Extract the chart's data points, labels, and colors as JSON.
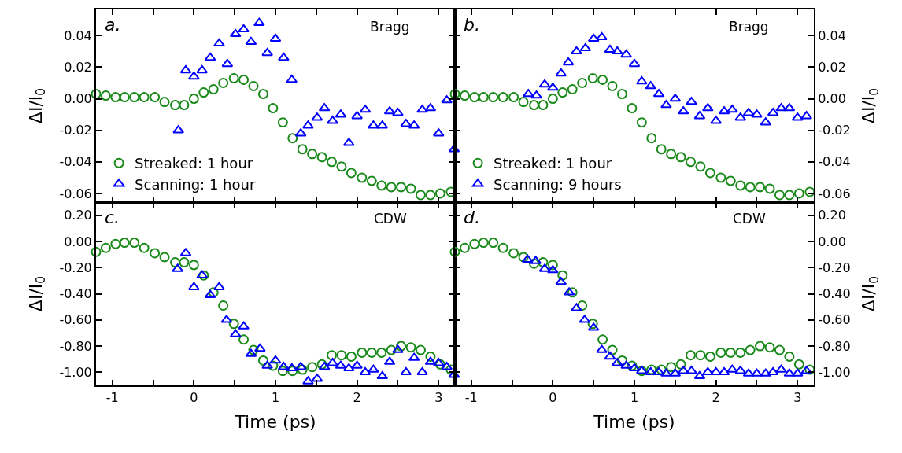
{
  "chart_data": [
    {
      "type": "scatter",
      "ylabel": "ΔI/I$_{0}$",
      "annotations": [
        "a.",
        "Bragg"
      ],
      "xlim": [
        -1.2,
        3.2
      ],
      "ylim": [
        -0.0655,
        0.0566
      ],
      "tick_labels": "y",
      "legend": "bottom left",
      "xticks": [
        -1,
        {
          "value": -0.5,
          "label": null
        },
        0,
        {
          "value": 0.5,
          "label": null
        },
        1,
        {
          "value": 1.5,
          "label": null
        },
        2,
        {
          "value": 2.5,
          "label": null
        },
        3
      ],
      "yticks": [
        0.04,
        0.02,
        {
          "value": 0,
          "label": "0.00"
        },
        -0.02,
        -0.04,
        -0.06
      ],
      "series": [
        {
          "name": "Streaked: 1 hour",
          "color": "#1a8a1a",
          "marker": "circle",
          "x": [
            -1.2,
            -1.08,
            -0.96,
            -0.85,
            -0.73,
            -0.61,
            -0.48,
            -0.36,
            -0.23,
            -0.12,
            0,
            0.12,
            0.24,
            0.36,
            0.49,
            0.61,
            0.73,
            0.85,
            0.97,
            1.09,
            1.21,
            1.33,
            1.45,
            1.57,
            1.69,
            1.81,
            1.93,
            2.06,
            2.18,
            2.3,
            2.42,
            2.54,
            2.66,
            2.78,
            2.9,
            3.02,
            3.15
          ],
          "values": [
            0.003,
            0.002,
            0.001,
            0.001,
            0.001,
            0.001,
            0.001,
            -0.002,
            -0.004,
            -0.004,
            0,
            0.004,
            0.006,
            0.01,
            0.013,
            0.012,
            0.008,
            0.003,
            -0.006,
            -0.015,
            -0.025,
            -0.032,
            -0.035,
            -0.037,
            -0.04,
            -0.043,
            -0.047,
            -0.05,
            -0.052,
            -0.055,
            -0.056,
            -0.056,
            -0.057,
            -0.061,
            -0.061,
            -0.06,
            -0.059
          ]
        },
        {
          "name": "Scanning: 1 hour",
          "color": "#0000ff",
          "marker": "triangle",
          "x": [
            -0.19,
            -0.1,
            0,
            0.1,
            0.2,
            0.31,
            0.41,
            0.51,
            0.61,
            0.7,
            0.8,
            0.9,
            1,
            1.1,
            1.2,
            1.31,
            1.4,
            1.51,
            1.6,
            1.7,
            1.8,
            1.9,
            2,
            2.1,
            2.2,
            2.31,
            2.4,
            2.5,
            2.6,
            2.7,
            2.8,
            2.9,
            3,
            3.1,
            3.19
          ],
          "values": [
            -0.02,
            0.018,
            0.014,
            0.018,
            0.026,
            0.035,
            0.022,
            0.041,
            0.044,
            0.036,
            0.048,
            0.029,
            0.038,
            0.026,
            0.012,
            -0.022,
            -0.017,
            -0.012,
            -0.006,
            -0.014,
            -0.01,
            -0.028,
            -0.011,
            -0.007,
            -0.017,
            -0.017,
            -0.008,
            -0.009,
            -0.016,
            -0.017,
            -0.007,
            -0.006,
            -0.022,
            -0.001,
            -0.032
          ]
        }
      ]
    },
    {
      "type": "scatter",
      "y2label": "ΔI/I$_{0}$",
      "annotations": [
        "b.",
        "Bragg"
      ],
      "xlim": [
        -1.2,
        3.2
      ],
      "y2lim": [
        -0.0655,
        0.0566
      ],
      "tick_labels": "y",
      "legend": "bottom left",
      "xticks": [
        -1,
        {
          "value": -0.5,
          "label": null
        },
        0,
        {
          "value": 0.5,
          "label": null
        },
        1,
        {
          "value": 1.5,
          "label": null
        },
        2,
        {
          "value": 2.5,
          "label": null
        },
        3
      ],
      "y2ticks": [
        0.04,
        0.02,
        {
          "value": 0,
          "label": "0.00"
        },
        -0.02,
        -0.04,
        -0.06
      ],
      "series": [
        {
          "name": "Streaked: 1 hour",
          "color": "#1a8a1a",
          "marker": "circle",
          "axis": "y2",
          "x": [
            -1.2,
            -1.08,
            -0.96,
            -0.85,
            -0.73,
            -0.61,
            -0.48,
            -0.36,
            -0.23,
            -0.12,
            0,
            0.12,
            0.24,
            0.36,
            0.49,
            0.61,
            0.73,
            0.85,
            0.97,
            1.09,
            1.21,
            1.33,
            1.45,
            1.57,
            1.69,
            1.81,
            1.93,
            2.06,
            2.18,
            2.3,
            2.42,
            2.54,
            2.66,
            2.78,
            2.9,
            3.02,
            3.15
          ],
          "values": [
            0.003,
            0.002,
            0.001,
            0.001,
            0.001,
            0.001,
            0.001,
            -0.002,
            -0.004,
            -0.004,
            0,
            0.004,
            0.006,
            0.01,
            0.013,
            0.012,
            0.008,
            0.003,
            -0.006,
            -0.015,
            -0.025,
            -0.032,
            -0.035,
            -0.037,
            -0.04,
            -0.043,
            -0.047,
            -0.05,
            -0.052,
            -0.055,
            -0.056,
            -0.056,
            -0.057,
            -0.061,
            -0.061,
            -0.06,
            -0.059
          ]
        },
        {
          "name": "Scanning: 9 hours",
          "color": "#0000ff",
          "marker": "triangle",
          "axis": "y2",
          "x": [
            -0.3,
            -0.2,
            -0.1,
            0,
            0.1,
            0.19,
            0.29,
            0.4,
            0.5,
            0.6,
            0.7,
            0.79,
            0.9,
            1,
            1.09,
            1.2,
            1.3,
            1.39,
            1.5,
            1.6,
            1.7,
            1.8,
            1.9,
            2,
            2.1,
            2.2,
            2.3,
            2.4,
            2.5,
            2.61,
            2.7,
            2.8,
            2.9,
            3,
            3.11
          ],
          "values": [
            0.003,
            0.002,
            0.009,
            0.007,
            0.016,
            0.023,
            0.03,
            0.032,
            0.038,
            0.039,
            0.031,
            0.03,
            0.028,
            0.022,
            0.011,
            0.008,
            0.003,
            -0.004,
            0,
            -0.008,
            -0.002,
            -0.011,
            -0.006,
            -0.014,
            -0.008,
            -0.007,
            -0.012,
            -0.009,
            -0.01,
            -0.015,
            -0.009,
            -0.006,
            -0.006,
            -0.012,
            -0.011
          ]
        }
      ]
    },
    {
      "type": "scatter",
      "xlabel": "Time (ps)",
      "ylabel": "ΔI/I$_{0}$",
      "annotations": [
        "c.",
        "CDW"
      ],
      "xlim": [
        -1.2,
        3.2
      ],
      "ylim": [
        -1.1,
        0.3
      ],
      "xticks": [
        -1,
        {
          "value": -0.5,
          "label": null
        },
        0,
        {
          "value": 0.5,
          "label": null
        },
        1,
        {
          "value": 1.5,
          "label": null
        },
        2,
        {
          "value": 2.5,
          "label": null
        },
        3
      ],
      "yticks": [
        {
          "value": 0.2,
          "label": "0.20"
        },
        {
          "value": 0,
          "label": "0.00"
        },
        {
          "value": -0.2,
          "label": "-0.20"
        },
        {
          "value": -0.4,
          "label": "-0.40"
        },
        {
          "value": -0.6,
          "label": "-0.60"
        },
        {
          "value": -0.8,
          "label": "-0.80"
        },
        {
          "value": -1,
          "label": "-1.00"
        }
      ],
      "series": [
        {
          "color": "#1a8a1a",
          "marker": "circle",
          "x": [
            -1.2,
            -1.08,
            -0.96,
            -0.85,
            -0.73,
            -0.61,
            -0.48,
            -0.36,
            -0.23,
            -0.12,
            0,
            0.12,
            0.24,
            0.36,
            0.49,
            0.61,
            0.73,
            0.85,
            0.97,
            1.09,
            1.21,
            1.33,
            1.45,
            1.57,
            1.69,
            1.81,
            1.93,
            2.06,
            2.18,
            2.3,
            2.42,
            2.54,
            2.66,
            2.78,
            2.9,
            3.02,
            3.15
          ],
          "values": [
            -0.08,
            -0.05,
            -0.02,
            -0.01,
            -0.01,
            -0.05,
            -0.09,
            -0.12,
            -0.16,
            -0.16,
            -0.18,
            -0.26,
            -0.39,
            -0.49,
            -0.63,
            -0.75,
            -0.83,
            -0.91,
            -0.95,
            -0.99,
            -0.99,
            -0.98,
            -0.96,
            -0.94,
            -0.87,
            -0.87,
            -0.88,
            -0.85,
            -0.85,
            -0.85,
            -0.83,
            -0.8,
            -0.81,
            -0.83,
            -0.88,
            -0.94,
            -0.98
          ]
        },
        {
          "color": "#0000ff",
          "marker": "triangle",
          "x": [
            -0.2,
            -0.1,
            0,
            0.1,
            0.2,
            0.31,
            0.4,
            0.51,
            0.61,
            0.7,
            0.81,
            0.9,
            1,
            1.1,
            1.2,
            1.31,
            1.4,
            1.51,
            1.6,
            1.7,
            1.8,
            1.9,
            2,
            2.1,
            2.2,
            2.31,
            2.4,
            2.5,
            2.6,
            2.7,
            2.8,
            2.9,
            3,
            3.1,
            3.19
          ],
          "values": [
            -0.21,
            -0.09,
            -0.35,
            -0.26,
            -0.41,
            -0.35,
            -0.6,
            -0.71,
            -0.65,
            -0.86,
            -0.82,
            -0.95,
            -0.91,
            -0.96,
            -0.97,
            -0.96,
            -1.07,
            -1.05,
            -0.96,
            -0.93,
            -0.95,
            -0.97,
            -0.95,
            -1,
            -0.98,
            -1.03,
            -0.92,
            -0.83,
            -1,
            -0.89,
            -1,
            -0.92,
            -0.93,
            -0.96,
            -1.02
          ]
        }
      ]
    },
    {
      "type": "scatter",
      "xlabel": "Time (ps)",
      "y2label": "ΔI/I$_{0}$",
      "annotations": [
        "d.",
        "CDW"
      ],
      "xlim": [
        -1.2,
        3.2
      ],
      "y2lim": [
        -1.1,
        0.3
      ],
      "xticks": [
        -1,
        {
          "value": -0.5,
          "label": null
        },
        0,
        {
          "value": 0.5,
          "label": null
        },
        1,
        {
          "value": 1.5,
          "label": null
        },
        2,
        {
          "value": 2.5,
          "label": null
        },
        3
      ],
      "y2ticks": [
        {
          "value": 0.2,
          "label": "0.20"
        },
        {
          "value": 0,
          "label": "0.00"
        },
        {
          "value": -0.2,
          "label": "-0.20"
        },
        {
          "value": -0.4,
          "label": "-0.40"
        },
        {
          "value": -0.6,
          "label": "-0.60"
        },
        {
          "value": -0.8,
          "label": "-0.80"
        },
        {
          "value": -1,
          "label": "-1.00"
        }
      ],
      "series": [
        {
          "color": "#1a8a1a",
          "marker": "circle",
          "axis": "y2",
          "x": [
            -1.2,
            -1.08,
            -0.96,
            -0.85,
            -0.73,
            -0.61,
            -0.48,
            -0.36,
            -0.23,
            -0.12,
            0,
            0.12,
            0.24,
            0.36,
            0.49,
            0.61,
            0.73,
            0.85,
            0.97,
            1.09,
            1.21,
            1.33,
            1.45,
            1.57,
            1.69,
            1.81,
            1.93,
            2.06,
            2.18,
            2.3,
            2.42,
            2.54,
            2.66,
            2.78,
            2.9,
            3.02,
            3.15
          ],
          "values": [
            -0.08,
            -0.05,
            -0.02,
            -0.01,
            -0.01,
            -0.05,
            -0.09,
            -0.12,
            -0.17,
            -0.16,
            -0.18,
            -0.26,
            -0.39,
            -0.49,
            -0.63,
            -0.75,
            -0.83,
            -0.91,
            -0.95,
            -0.99,
            -0.98,
            -0.98,
            -0.96,
            -0.94,
            -0.87,
            -0.87,
            -0.88,
            -0.85,
            -0.85,
            -0.85,
            -0.83,
            -0.8,
            -0.81,
            -0.83,
            -0.88,
            -0.94,
            -0.98
          ]
        },
        {
          "color": "#0000ff",
          "marker": "triangle",
          "axis": "y2",
          "x": [
            -0.31,
            -0.21,
            -0.1,
            0,
            0.1,
            0.2,
            0.29,
            0.39,
            0.5,
            0.6,
            0.7,
            0.79,
            0.9,
            1,
            1.09,
            1.2,
            1.3,
            1.39,
            1.5,
            1.6,
            1.7,
            1.8,
            1.9,
            2,
            2.1,
            2.2,
            2.3,
            2.4,
            2.5,
            2.61,
            2.7,
            2.8,
            2.9,
            3,
            3.11
          ],
          "values": [
            -0.14,
            -0.15,
            -0.21,
            -0.22,
            -0.31,
            -0.39,
            -0.51,
            -0.6,
            -0.66,
            -0.83,
            -0.88,
            -0.93,
            -0.95,
            -0.97,
            -0.99,
            -1,
            -1,
            -1.01,
            -1.01,
            -0.99,
            -0.99,
            -1.03,
            -1,
            -1,
            -1,
            -0.98,
            -0.99,
            -1.01,
            -1.01,
            -1.01,
            -1,
            -0.98,
            -1.01,
            -1.01,
            -0.99
          ]
        }
      ]
    }
  ]
}
